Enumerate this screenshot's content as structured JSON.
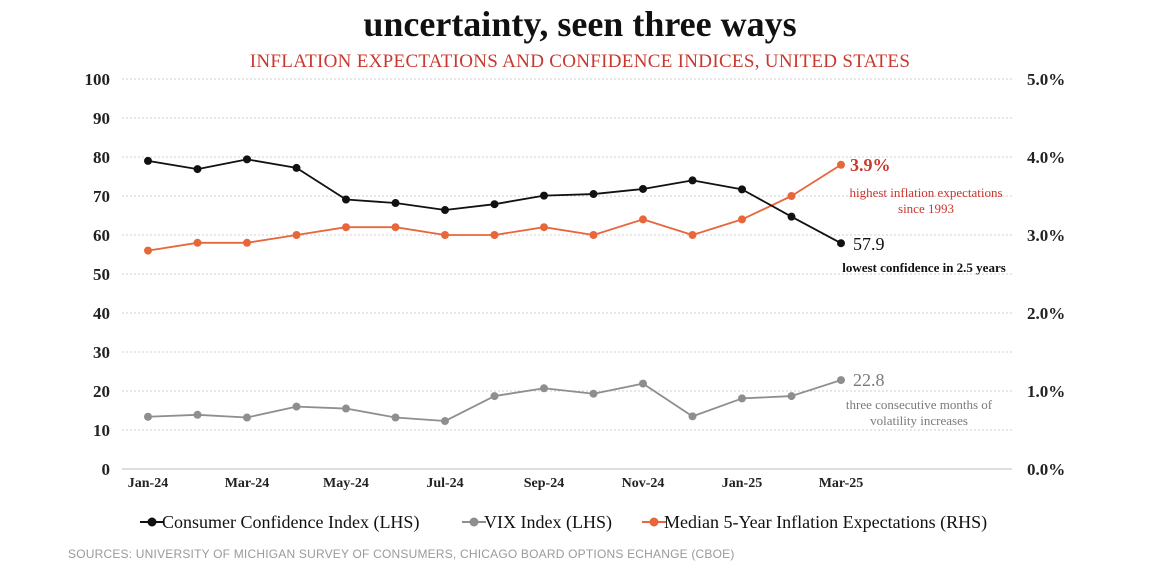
{
  "chart_data": {
    "type": "line",
    "title": "uncertainty, seen three ways",
    "subtitle": "INFLATION EXPECTATIONS AND CONFIDENCE INDICES, UNITED STATES",
    "x": [
      "Jan-24",
      "Feb-24",
      "Mar-24",
      "Apr-24",
      "May-24",
      "Jun-24",
      "Jul-24",
      "Aug-24",
      "Sep-24",
      "Oct-24",
      "Nov-24",
      "Dec-24",
      "Jan-25",
      "Feb-25",
      "Mar-25"
    ],
    "x_tick_labels": [
      "Jan-24",
      "Mar-24",
      "May-24",
      "Jul-24",
      "Sep-24",
      "Nov-24",
      "Jan-25",
      "Mar-25"
    ],
    "y_left": {
      "ylim": [
        0,
        100
      ],
      "ticks": [
        "0",
        "10",
        "20",
        "30",
        "40",
        "50",
        "60",
        "70",
        "80",
        "90",
        "100"
      ]
    },
    "y_right": {
      "ylim": [
        0,
        5
      ],
      "ticks": [
        "0.0%",
        "1.0%",
        "2.0%",
        "3.0%",
        "4.0%",
        "5.0%"
      ]
    },
    "grid": true,
    "legend": "bottom",
    "series": [
      {
        "name": "Consumer Confidence Index (LHS)",
        "axis": "left",
        "color": "#111111",
        "values": [
          79.0,
          76.9,
          79.4,
          77.2,
          69.1,
          68.2,
          66.4,
          67.9,
          70.1,
          70.5,
          71.8,
          74.0,
          71.7,
          64.7,
          57.9
        ]
      },
      {
        "name": "VIX Index (LHS)",
        "axis": "left",
        "color": "#8e8e8e",
        "values": [
          13.4,
          13.9,
          13.2,
          16.0,
          15.5,
          13.2,
          12.3,
          18.7,
          20.7,
          19.3,
          21.9,
          13.5,
          18.1,
          18.7,
          22.8
        ]
      },
      {
        "name": "Median 5-Year Inflation Expectations (RHS)",
        "axis": "right",
        "color": "#e8673a",
        "values": [
          2.8,
          2.9,
          2.9,
          3.0,
          3.1,
          3.1,
          3.0,
          3.0,
          3.1,
          3.0,
          3.2,
          3.0,
          3.2,
          3.5,
          3.9
        ]
      }
    ],
    "annotations": {
      "inflation": {
        "value": "3.9%",
        "note_line1": "highest inflation expectations",
        "note_line2": "since 1993",
        "color": "#c8382e"
      },
      "confidence": {
        "value": "57.9",
        "note_line1": "lowest confidence in 2.5 years",
        "color": "#111111"
      },
      "vix": {
        "value": "22.8",
        "note_line1": "three consecutive months of",
        "note_line2": "volatility increases",
        "color": "#7a7a7a"
      }
    },
    "source": "SOURCES: UNIVERSITY OF MICHIGAN SURVEY OF CONSUMERS, CHICAGO BOARD OPTIONS ECHANGE (CBOE)"
  }
}
